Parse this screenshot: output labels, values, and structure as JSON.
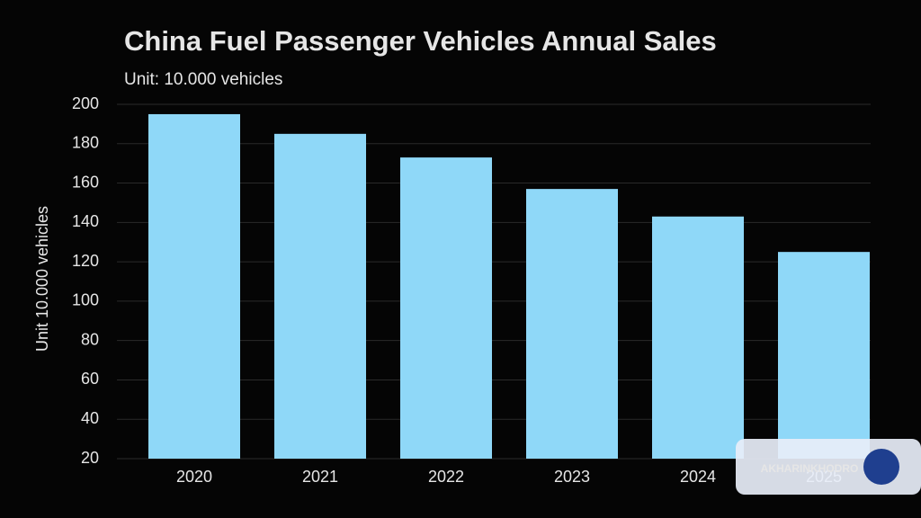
{
  "chart_data": {
    "type": "bar",
    "title": "China Fuel Passenger Vehicles Annual Sales",
    "subtitle": "Unit: 10.000 vehicles",
    "y_label": "Unit 10.000 vehicles",
    "categories": [
      "2020",
      "2021",
      "2022",
      "2023",
      "2024",
      "2025"
    ],
    "values": [
      195,
      185,
      173,
      157,
      143,
      125
    ],
    "color": "#8fd8f8",
    "ylim": [
      20,
      200
    ],
    "yticks": [
      20,
      40,
      60,
      80,
      100,
      120,
      140,
      160,
      180,
      200
    ],
    "grid": true
  },
  "watermark": {
    "text": "AKHARINKHODRO"
  }
}
